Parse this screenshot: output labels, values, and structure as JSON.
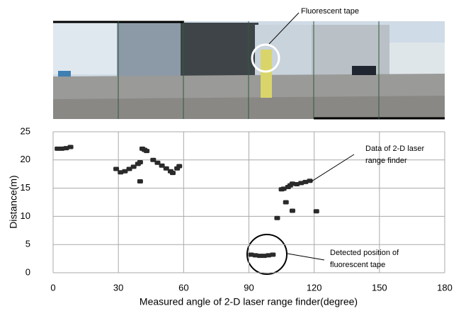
{
  "chart_data": {
    "type": "scatter",
    "x_label": "Measured angle of 2-D laser range finder(degree)",
    "y_label": "Distance(m)",
    "xlim": [
      0,
      180
    ],
    "ylim": [
      0,
      25
    ],
    "xticks": [
      0,
      30,
      60,
      90,
      120,
      150,
      180
    ],
    "yticks": [
      0,
      5,
      10,
      15,
      20,
      25
    ],
    "grid": true,
    "color": "#2a2a2a",
    "x": [
      2,
      4,
      6,
      8,
      29,
      31,
      33,
      35,
      37,
      39,
      40,
      40,
      41,
      42,
      43,
      46,
      48,
      50,
      52,
      54,
      55,
      57,
      58,
      103,
      105,
      106,
      108,
      109,
      110,
      112,
      114,
      116,
      118,
      107,
      110,
      121,
      91,
      93,
      95,
      97,
      99,
      101
    ],
    "values": [
      22.0,
      22.0,
      22.1,
      22.3,
      18.4,
      17.8,
      18.0,
      18.4,
      18.8,
      19.3,
      19.6,
      16.2,
      22.0,
      21.8,
      21.6,
      20.0,
      19.5,
      19.0,
      18.5,
      18.0,
      17.7,
      18.5,
      18.9,
      9.7,
      14.8,
      14.9,
      15.2,
      15.5,
      15.8,
      15.7,
      15.9,
      16.1,
      16.3,
      12.5,
      11.0,
      10.9,
      3.2,
      3.1,
      3.0,
      3.0,
      3.1,
      3.2
    ],
    "annotations": [
      [
        "Fluorescent tape"
      ],
      [
        "Data of 2-D laser",
        "range finder"
      ],
      [
        "Detected position of",
        "fluorescent tape"
      ]
    ]
  }
}
